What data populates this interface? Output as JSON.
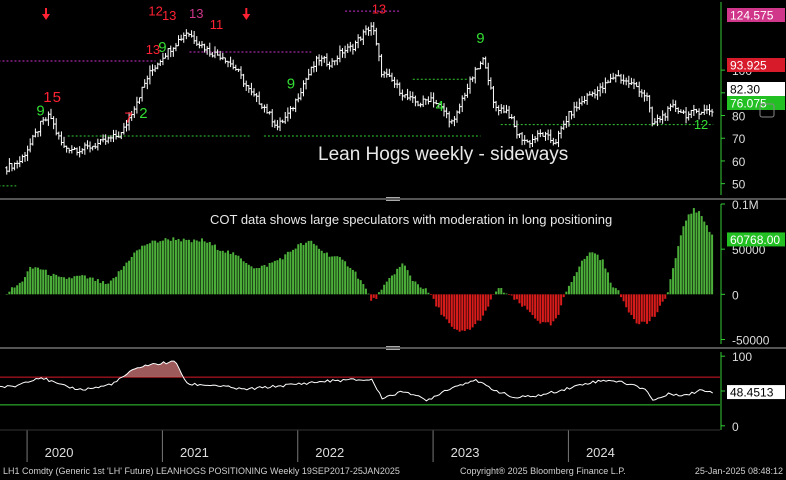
{
  "chart_data": [
    {
      "type": "candlestick",
      "title": "Lean Hogs weekly - sideways",
      "ylim": [
        45,
        130
      ],
      "y_ticks": [
        50,
        60,
        70,
        80,
        90,
        100
      ],
      "price_labels": [
        {
          "value": 124.575,
          "text": "124.575",
          "bg": "#d0378a",
          "fg": "#ffffff"
        },
        {
          "value": 93.925,
          "text": "93.925",
          "bg": "#d81b2b",
          "fg": "#ffffff"
        },
        {
          "value": 82.3,
          "text": "82.30",
          "bg": "#ffffff",
          "fg": "#000000"
        },
        {
          "value": 76.075,
          "text": "76.075",
          "bg": "#22c022",
          "fg": "#ffffff"
        }
      ],
      "series_close": [
        {
          "t": 2017.72,
          "v": 55
        },
        {
          "t": 2019.85,
          "v": 57
        },
        {
          "t": 2019.95,
          "v": 60
        },
        {
          "t": 2020.02,
          "v": 67
        },
        {
          "t": 2020.1,
          "v": 76
        },
        {
          "t": 2020.17,
          "v": 80
        },
        {
          "t": 2020.22,
          "v": 72
        },
        {
          "t": 2020.27,
          "v": 66
        },
        {
          "t": 2020.4,
          "v": 65
        },
        {
          "t": 2020.55,
          "v": 68
        },
        {
          "t": 2020.7,
          "v": 72
        },
        {
          "t": 2020.8,
          "v": 85
        },
        {
          "t": 2020.9,
          "v": 98
        },
        {
          "t": 2021.0,
          "v": 106
        },
        {
          "t": 2021.1,
          "v": 112
        },
        {
          "t": 2021.18,
          "v": 117
        },
        {
          "t": 2021.25,
          "v": 113
        },
        {
          "t": 2021.35,
          "v": 108
        },
        {
          "t": 2021.45,
          "v": 106
        },
        {
          "t": 2021.55,
          "v": 100
        },
        {
          "t": 2021.65,
          "v": 90
        },
        {
          "t": 2021.75,
          "v": 84
        },
        {
          "t": 2021.85,
          "v": 75
        },
        {
          "t": 2021.95,
          "v": 82
        },
        {
          "t": 2022.05,
          "v": 95
        },
        {
          "t": 2022.15,
          "v": 105
        },
        {
          "t": 2022.25,
          "v": 103
        },
        {
          "t": 2022.32,
          "v": 108
        },
        {
          "t": 2022.4,
          "v": 110
        },
        {
          "t": 2022.47,
          "v": 115
        },
        {
          "t": 2022.55,
          "v": 120
        },
        {
          "t": 2022.62,
          "v": 99
        },
        {
          "t": 2022.7,
          "v": 95
        },
        {
          "t": 2022.8,
          "v": 88
        },
        {
          "t": 2022.9,
          "v": 85
        },
        {
          "t": 2022.98,
          "v": 88
        },
        {
          "t": 2023.08,
          "v": 82
        },
        {
          "t": 2023.15,
          "v": 76
        },
        {
          "t": 2023.22,
          "v": 88
        },
        {
          "t": 2023.3,
          "v": 98
        },
        {
          "t": 2023.38,
          "v": 105
        },
        {
          "t": 2023.45,
          "v": 84
        },
        {
          "t": 2023.55,
          "v": 82
        },
        {
          "t": 2023.62,
          "v": 72
        },
        {
          "t": 2023.7,
          "v": 68
        },
        {
          "t": 2023.8,
          "v": 72
        },
        {
          "t": 2023.9,
          "v": 68
        },
        {
          "t": 2024.0,
          "v": 80
        },
        {
          "t": 2024.08,
          "v": 85
        },
        {
          "t": 2024.15,
          "v": 89
        },
        {
          "t": 2024.25,
          "v": 92
        },
        {
          "t": 2024.35,
          "v": 98
        },
        {
          "t": 2024.42,
          "v": 95
        },
        {
          "t": 2024.5,
          "v": 93
        },
        {
          "t": 2024.58,
          "v": 88
        },
        {
          "t": 2024.62,
          "v": 76
        },
        {
          "t": 2024.7,
          "v": 80
        },
        {
          "t": 2024.78,
          "v": 84
        },
        {
          "t": 2024.88,
          "v": 80
        },
        {
          "t": 2024.95,
          "v": 82
        },
        {
          "t": 2025.07,
          "v": 82.3
        }
      ],
      "tom_demark_counts": [
        {
          "t": 2020.1,
          "v": 80,
          "text": "9",
          "color": "#33dd33"
        },
        {
          "t": 2020.15,
          "v": 86,
          "text": "1",
          "color": "#ff2233"
        },
        {
          "t": 2020.22,
          "v": 86,
          "text": "5",
          "color": "#ff2233"
        },
        {
          "t": 2020.75,
          "v": 77,
          "text": "7",
          "color": "#ff2233"
        },
        {
          "t": 2020.86,
          "v": 79,
          "text": "2",
          "color": "#33dd33"
        },
        {
          "t": 2020.93,
          "v": 107,
          "text": "13",
          "color": "#ff2233"
        },
        {
          "t": 2021.0,
          "v": 108,
          "text": "9",
          "color": "#33dd33"
        },
        {
          "t": 2020.95,
          "v": 124,
          "text": "12",
          "color": "#ff2233"
        },
        {
          "t": 2021.05,
          "v": 122,
          "text": "13",
          "color": "#ff2233"
        },
        {
          "t": 2021.25,
          "v": 123,
          "text": "13",
          "color": "#d0378a"
        },
        {
          "t": 2021.4,
          "v": 118,
          "text": "11",
          "color": "#ff2233"
        },
        {
          "t": 2021.95,
          "v": 92,
          "text": "9",
          "color": "#33dd33"
        },
        {
          "t": 2022.6,
          "v": 125,
          "text": "13",
          "color": "#ff2233"
        },
        {
          "t": 2023.05,
          "v": 82,
          "text": "4",
          "color": "#33dd33"
        },
        {
          "t": 2023.35,
          "v": 112,
          "text": "9",
          "color": "#33dd33"
        },
        {
          "t": 2024.98,
          "v": 74,
          "text": "12",
          "color": "#33dd33"
        }
      ],
      "levels": [
        {
          "v": 104,
          "t0": 2017.72,
          "t1": 2020.95,
          "color": "#cc33cc"
        },
        {
          "v": 108,
          "t0": 2021.2,
          "t1": 2022.1,
          "color": "#cc33cc"
        },
        {
          "v": 126,
          "t0": 2022.35,
          "t1": 2022.75,
          "color": "#cc33cc"
        },
        {
          "v": 96,
          "t0": 2022.85,
          "t1": 2023.25,
          "color": "#33cc33"
        },
        {
          "v": 71,
          "t0": 2020.3,
          "t1": 2021.65,
          "color": "#33cc33"
        },
        {
          "v": 71,
          "t0": 2021.75,
          "t1": 2023.35,
          "color": "#33cc33"
        },
        {
          "v": 76,
          "t0": 2023.5,
          "t1": 2025.07,
          "color": "#33cc33"
        },
        {
          "v": 49,
          "t0": 2017.72,
          "t1": 2019.92,
          "color": "#33cc33"
        }
      ]
    },
    {
      "type": "bar",
      "title": "COT data shows large speculators with moderation in long positioning",
      "ylim": [
        -55000,
        100000
      ],
      "y_ticks": [
        {
          "value": 100000,
          "text": "0.1M"
        },
        {
          "value": 50000,
          "text": "50000"
        },
        {
          "value": 0,
          "text": "0"
        },
        {
          "value": -50000,
          "text": "-50000"
        }
      ],
      "last_label": {
        "value": 60768,
        "text": "60768.00",
        "bg": "#22c022",
        "fg": "#ffffff"
      },
      "series_net_long": [
        {
          "t": 2019.85,
          "v": 2000
        },
        {
          "t": 2019.95,
          "v": 12000
        },
        {
          "t": 2020.02,
          "v": 28000
        },
        {
          "t": 2020.08,
          "v": 30000
        },
        {
          "t": 2020.15,
          "v": 24000
        },
        {
          "t": 2020.25,
          "v": 17000
        },
        {
          "t": 2020.4,
          "v": 20000
        },
        {
          "t": 2020.5,
          "v": 16000
        },
        {
          "t": 2020.6,
          "v": 10000
        },
        {
          "t": 2020.7,
          "v": 28000
        },
        {
          "t": 2020.78,
          "v": 44000
        },
        {
          "t": 2020.88,
          "v": 56000
        },
        {
          "t": 2021.0,
          "v": 60000
        },
        {
          "t": 2021.1,
          "v": 62000
        },
        {
          "t": 2021.2,
          "v": 58000
        },
        {
          "t": 2021.3,
          "v": 60000
        },
        {
          "t": 2021.4,
          "v": 52000
        },
        {
          "t": 2021.5,
          "v": 46000
        },
        {
          "t": 2021.6,
          "v": 38000
        },
        {
          "t": 2021.7,
          "v": 28000
        },
        {
          "t": 2021.8,
          "v": 34000
        },
        {
          "t": 2021.9,
          "v": 42000
        },
        {
          "t": 2022.0,
          "v": 54000
        },
        {
          "t": 2022.1,
          "v": 58000
        },
        {
          "t": 2022.2,
          "v": 46000
        },
        {
          "t": 2022.3,
          "v": 40000
        },
        {
          "t": 2022.4,
          "v": 30000
        },
        {
          "t": 2022.48,
          "v": 12000
        },
        {
          "t": 2022.55,
          "v": -8000
        },
        {
          "t": 2022.62,
          "v": 4000
        },
        {
          "t": 2022.7,
          "v": 22000
        },
        {
          "t": 2022.78,
          "v": 34000
        },
        {
          "t": 2022.85,
          "v": 16000
        },
        {
          "t": 2022.92,
          "v": 8000
        },
        {
          "t": 2022.98,
          "v": 0
        },
        {
          "t": 2023.02,
          "v": -12000
        },
        {
          "t": 2023.08,
          "v": -24000
        },
        {
          "t": 2023.15,
          "v": -40000
        },
        {
          "t": 2023.22,
          "v": -42000
        },
        {
          "t": 2023.3,
          "v": -36000
        },
        {
          "t": 2023.4,
          "v": -18000
        },
        {
          "t": 2023.45,
          "v": 2000
        },
        {
          "t": 2023.5,
          "v": 6000
        },
        {
          "t": 2023.55,
          "v": 0
        },
        {
          "t": 2023.62,
          "v": -8000
        },
        {
          "t": 2023.7,
          "v": -18000
        },
        {
          "t": 2023.8,
          "v": -32000
        },
        {
          "t": 2023.88,
          "v": -34000
        },
        {
          "t": 2023.93,
          "v": -22000
        },
        {
          "t": 2023.98,
          "v": 2000
        },
        {
          "t": 2024.05,
          "v": 24000
        },
        {
          "t": 2024.12,
          "v": 40000
        },
        {
          "t": 2024.18,
          "v": 48000
        },
        {
          "t": 2024.25,
          "v": 38000
        },
        {
          "t": 2024.32,
          "v": 12000
        },
        {
          "t": 2024.38,
          "v": 0
        },
        {
          "t": 2024.42,
          "v": -12000
        },
        {
          "t": 2024.5,
          "v": -30000
        },
        {
          "t": 2024.58,
          "v": -32000
        },
        {
          "t": 2024.65,
          "v": -22000
        },
        {
          "t": 2024.72,
          "v": -4000
        },
        {
          "t": 2024.76,
          "v": 20000
        },
        {
          "t": 2024.82,
          "v": 58000
        },
        {
          "t": 2024.88,
          "v": 88000
        },
        {
          "t": 2024.93,
          "v": 94000
        },
        {
          "t": 2024.98,
          "v": 88000
        },
        {
          "t": 2025.03,
          "v": 76000
        },
        {
          "t": 2025.07,
          "v": 60768
        }
      ]
    },
    {
      "type": "line",
      "ylim": [
        -6,
        106
      ],
      "y_ticks": [
        0,
        50,
        100
      ],
      "upper_band": 70,
      "lower_band": 30,
      "last_label": {
        "value": 48.4513,
        "text": "48.4513",
        "bg": "#ffffff",
        "fg": "#000000"
      },
      "series_index": [
        {
          "t": 2017.72,
          "v": 58
        },
        {
          "t": 2019.9,
          "v": 56
        },
        {
          "t": 2020.0,
          "v": 64
        },
        {
          "t": 2020.1,
          "v": 70
        },
        {
          "t": 2020.25,
          "v": 58
        },
        {
          "t": 2020.4,
          "v": 52
        },
        {
          "t": 2020.55,
          "v": 56
        },
        {
          "t": 2020.65,
          "v": 62
        },
        {
          "t": 2020.75,
          "v": 76
        },
        {
          "t": 2020.85,
          "v": 86
        },
        {
          "t": 2021.0,
          "v": 90
        },
        {
          "t": 2021.1,
          "v": 92
        },
        {
          "t": 2021.18,
          "v": 60
        },
        {
          "t": 2021.4,
          "v": 58
        },
        {
          "t": 2021.6,
          "v": 52
        },
        {
          "t": 2021.8,
          "v": 56
        },
        {
          "t": 2022.0,
          "v": 60
        },
        {
          "t": 2022.2,
          "v": 64
        },
        {
          "t": 2022.4,
          "v": 66
        },
        {
          "t": 2022.55,
          "v": 66
        },
        {
          "t": 2022.62,
          "v": 40
        },
        {
          "t": 2022.8,
          "v": 50
        },
        {
          "t": 2022.95,
          "v": 36
        },
        {
          "t": 2023.1,
          "v": 52
        },
        {
          "t": 2023.3,
          "v": 66
        },
        {
          "t": 2023.45,
          "v": 52
        },
        {
          "t": 2023.6,
          "v": 40
        },
        {
          "t": 2023.8,
          "v": 44
        },
        {
          "t": 2024.0,
          "v": 54
        },
        {
          "t": 2024.15,
          "v": 62
        },
        {
          "t": 2024.3,
          "v": 66
        },
        {
          "t": 2024.45,
          "v": 60
        },
        {
          "t": 2024.58,
          "v": 52
        },
        {
          "t": 2024.62,
          "v": 36
        },
        {
          "t": 2024.75,
          "v": 46
        },
        {
          "t": 2024.88,
          "v": 44
        },
        {
          "t": 2024.98,
          "v": 52
        },
        {
          "t": 2025.07,
          "v": 48.45
        }
      ]
    }
  ],
  "x_axis": {
    "ticks": [
      {
        "t": 2020.0,
        "label": "2020"
      },
      {
        "t": 2021.0,
        "label": "2021"
      },
      {
        "t": 2022.0,
        "label": "2022"
      },
      {
        "t": 2023.0,
        "label": "2023"
      },
      {
        "t": 2024.0,
        "label": "2024"
      }
    ],
    "t_min": 2019.8,
    "t_max": 2025.12
  },
  "footer": {
    "left": "LH1 Comdty (Generic 1st 'LH' Future) LEANHOGS POSITIONING  Weekly 19SEP2017-25JAN2025",
    "center": "Copyright® 2025 Bloomberg Finance L.P.",
    "right": "25-Jan-2025 08:48:12"
  },
  "colors": {
    "background": "#000000",
    "price_bar": "#ffffff",
    "cot_positive": "#4caf3a",
    "cot_negative": "#d81b1b",
    "overbought": "#d81b2b",
    "oversold": "#33cc33",
    "panel_divider": "#555555",
    "axis": "#33cc33"
  }
}
